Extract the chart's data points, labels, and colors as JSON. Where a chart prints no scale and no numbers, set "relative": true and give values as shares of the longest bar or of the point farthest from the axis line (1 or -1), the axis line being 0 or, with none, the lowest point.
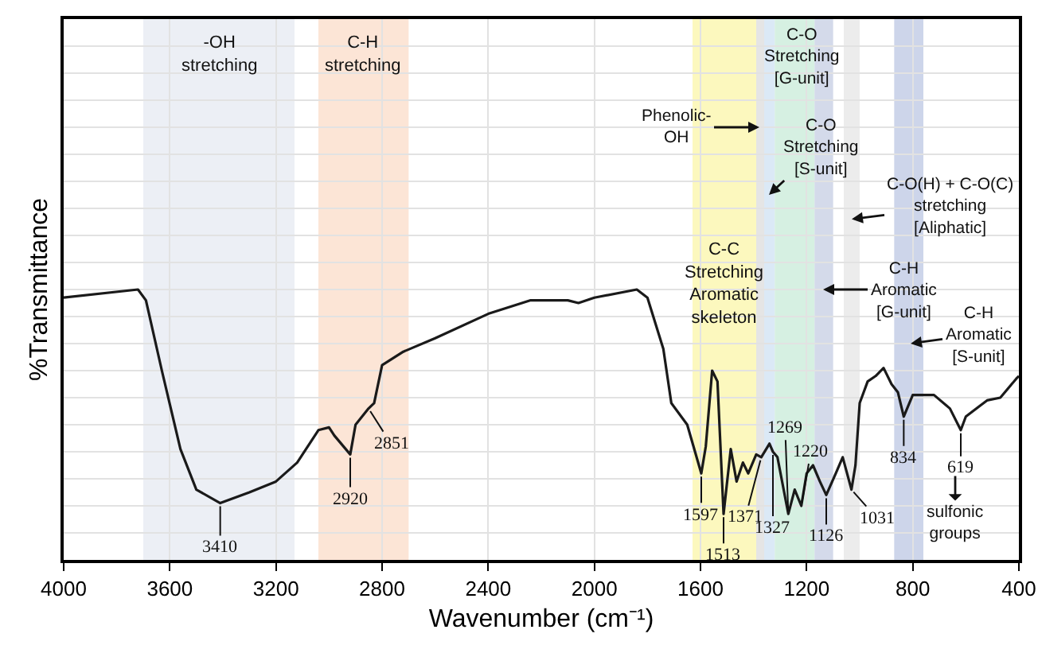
{
  "chart_data": {
    "type": "line",
    "relative": true,
    "xlabel": "Wavenumber (cm⁻¹)",
    "ylabel": "%Transmittance",
    "xlim": [
      4000,
      400
    ],
    "xticks": [
      4000,
      3600,
      3200,
      2800,
      2400,
      2000,
      1600,
      1200,
      800,
      400
    ],
    "grid": true,
    "marker": "none",
    "line_style": "solid",
    "series": [
      {
        "color": "#1a1a1a",
        "x": [
          4000,
          3720,
          3690,
          3630,
          3560,
          3500,
          3410,
          3300,
          3200,
          3120,
          3040,
          3000,
          2980,
          2920,
          2900,
          2851,
          2830,
          2800,
          2720,
          2600,
          2400,
          2240,
          2100,
          2060,
          2000,
          1840,
          1800,
          1740,
          1710,
          1650,
          1597,
          1580,
          1556,
          1536,
          1513,
          1486,
          1464,
          1440,
          1420,
          1390,
          1371,
          1340,
          1327,
          1310,
          1269,
          1245,
          1220,
          1200,
          1176,
          1150,
          1126,
          1090,
          1064,
          1031,
          1016,
          1000,
          970,
          940,
          910,
          880,
          856,
          834,
          800,
          720,
          660,
          619,
          600,
          520,
          470,
          410,
          400
        ],
        "values": [
          0.97,
          1,
          0.96,
          0.7,
          0.41,
          0.26,
          0.21,
          0.25,
          0.29,
          0.36,
          0.48,
          0.49,
          0.46,
          0.39,
          0.5,
          0.56,
          0.58,
          0.72,
          0.77,
          0.82,
          0.91,
          0.96,
          0.96,
          0.95,
          0.97,
          1,
          0.97,
          0.78,
          0.58,
          0.5,
          0.32,
          0.42,
          0.7,
          0.66,
          0.17,
          0.41,
          0.29,
          0.36,
          0.32,
          0.39,
          0.38,
          0.43,
          0.4,
          0.38,
          0.17,
          0.26,
          0.2,
          0.32,
          0.35,
          0.29,
          0.24,
          0.32,
          0.38,
          0.26,
          0.35,
          0.58,
          0.66,
          0.68,
          0.71,
          0.65,
          0.62,
          0.53,
          0.61,
          0.61,
          0.56,
          0.48,
          0.53,
          0.59,
          0.6,
          0.67,
          0.68
        ]
      }
    ],
    "bands": [
      {
        "axis": "x",
        "from": 3700,
        "to": 3130,
        "color": "#e6e9f1",
        "label": "-OH\nstretching"
      },
      {
        "axis": "x",
        "from": 3040,
        "to": 2700,
        "color": "#fbdcc8",
        "label": "C-H\nstretching"
      },
      {
        "axis": "x",
        "from": 1630,
        "to": 1390,
        "color": "#fbf5a8",
        "label": "C-C\nStretching\nAromatic\nskeleton"
      },
      {
        "axis": "x",
        "from": 1390,
        "to": 1360,
        "color": "#dcdcdc"
      },
      {
        "axis": "x",
        "from": 1360,
        "to": 1320,
        "color": "#cfe2f3"
      },
      {
        "axis": "x",
        "from": 1320,
        "to": 1170,
        "color": "#c8ebd8"
      },
      {
        "axis": "x",
        "from": 1170,
        "to": 1100,
        "color": "#c5cde3"
      },
      {
        "axis": "x",
        "from": 1060,
        "to": 1000,
        "color": "#e6e6e6"
      },
      {
        "axis": "x",
        "from": 870,
        "to": 760,
        "color": "#bcc7e3"
      }
    ],
    "annotations": [
      {
        "text": "3410",
        "x": 3410,
        "y": 0.21
      },
      {
        "text": "2920",
        "x": 2920,
        "y": 0.39
      },
      {
        "text": "2851",
        "x": 2851,
        "y": 0.56
      },
      {
        "text": "1597",
        "x": 1597,
        "y": 0.32
      },
      {
        "text": "1513",
        "x": 1513,
        "y": 0.17
      },
      {
        "text": "1371",
        "x": 1371,
        "y": 0.38
      },
      {
        "text": "1327",
        "x": 1327,
        "y": 0.4
      },
      {
        "text": "1269",
        "x": 1269,
        "y": 0.17
      },
      {
        "text": "1220",
        "x": 1220,
        "y": 0.2
      },
      {
        "text": "1126",
        "x": 1126,
        "y": 0.24
      },
      {
        "text": "1031",
        "x": 1031,
        "y": 0.26
      },
      {
        "text": "834",
        "x": 834,
        "y": 0.53
      },
      {
        "text": "619",
        "x": 619,
        "y": 0.48
      },
      "Phenolic-\nOH",
      "C-O\nStretching\n[G-unit]",
      "C-O\nStretching\n[S-unit]",
      "C-O(H) + C-O(C)\nstretching\n[Aliphatic]",
      "C-H\nAromatic\n[G-unit]",
      "C-H\nAromatic\n[S-unit]",
      "sulfonic\ngroups"
    ]
  }
}
